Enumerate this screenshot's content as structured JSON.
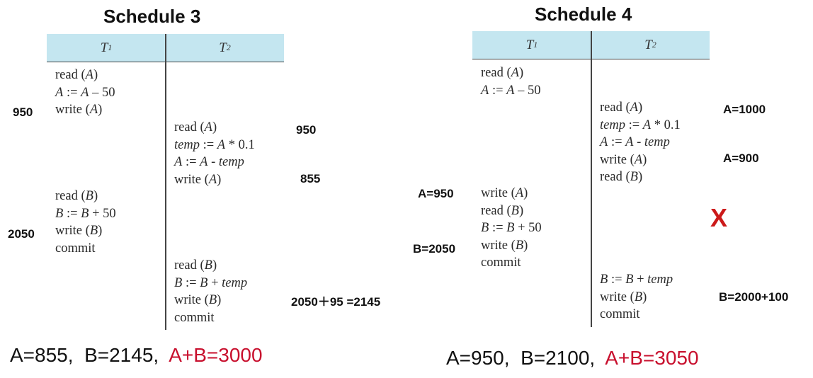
{
  "schedule3": {
    "title": "Schedule 3",
    "header": {
      "t1": "T",
      "t1_sub": "1",
      "t2": "T",
      "t2_sub": "2"
    },
    "t1_block1": [
      {
        "text": "read (A)"
      },
      {
        "text": "A := A – 50"
      },
      {
        "text": "write (A)"
      }
    ],
    "t2_block1": [
      {
        "text": "read (A)"
      },
      {
        "text": "temp := A * 0.1"
      },
      {
        "text": "A := A - temp"
      },
      {
        "text": "write (A)"
      }
    ],
    "t1_block2": [
      {
        "text": "read (B)"
      },
      {
        "text": "B := B + 50"
      },
      {
        "text": "write (B)"
      },
      {
        "text": "commit"
      }
    ],
    "t2_block2": [
      {
        "text": "read (B)"
      },
      {
        "text": "B := B + temp"
      },
      {
        "text": "write (B)"
      },
      {
        "text": "commit"
      }
    ],
    "notes": {
      "a950_left": "950",
      "a950_right": "950",
      "a855": "855",
      "b2050": "2050",
      "b2145": "2050＋95 =2145"
    },
    "summary": {
      "values": "A=855,  B=2145,  ",
      "sum": "A+B=3000"
    }
  },
  "schedule4": {
    "title": "Schedule 4",
    "header": {
      "t1": "T",
      "t1_sub": "1",
      "t2": "T",
      "t2_sub": "2"
    },
    "t1_block1": [
      {
        "text": "read (A)"
      },
      {
        "text": "A := A – 50"
      }
    ],
    "t2_block1": [
      {
        "text": "read (A)"
      },
      {
        "text": "temp := A * 0.1"
      },
      {
        "text": "A := A - temp"
      },
      {
        "text": "write (A)"
      },
      {
        "text": "read (B)"
      }
    ],
    "t1_block2": [
      {
        "text": "write (A)"
      },
      {
        "text": "read (B)"
      },
      {
        "text": "B := B + 50"
      },
      {
        "text": "write (B)"
      },
      {
        "text": "commit"
      }
    ],
    "t2_block2": [
      {
        "text": "B := B + temp"
      },
      {
        "text": "write (B)"
      },
      {
        "text": "commit"
      }
    ],
    "notes": {
      "a1000": "A=1000",
      "a900": "A=900",
      "a950": "A=950",
      "b2050": "B=2050",
      "b2100": "B=2000+100",
      "cross": "X"
    },
    "summary": {
      "values": "A=950,  B=2100,  ",
      "sum": "A+B=3050"
    }
  },
  "colors": {
    "header_bg": "#c4e6f0",
    "accent_red": "#c8102e",
    "cross_red": "#cc1a1a"
  }
}
